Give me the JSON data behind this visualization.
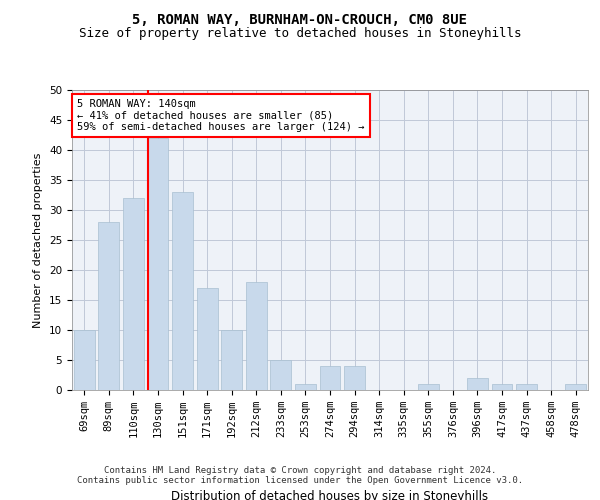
{
  "title1": "5, ROMAN WAY, BURNHAM-ON-CROUCH, CM0 8UE",
  "title2": "Size of property relative to detached houses in Stoneyhills",
  "xlabel": "Distribution of detached houses by size in Stoneyhills",
  "ylabel": "Number of detached properties",
  "categories": [
    "69sqm",
    "89sqm",
    "110sqm",
    "130sqm",
    "151sqm",
    "171sqm",
    "192sqm",
    "212sqm",
    "233sqm",
    "253sqm",
    "274sqm",
    "294sqm",
    "314sqm",
    "335sqm",
    "355sqm",
    "376sqm",
    "396sqm",
    "417sqm",
    "437sqm",
    "458sqm",
    "478sqm"
  ],
  "values": [
    10,
    28,
    32,
    42,
    33,
    17,
    10,
    18,
    5,
    1,
    4,
    4,
    0,
    0,
    1,
    0,
    2,
    1,
    1,
    0,
    1
  ],
  "bar_color": "#c8d9eb",
  "bar_edge_color": "#a8bfd0",
  "vline_x_index": 3.0,
  "vline_color": "red",
  "ylim": [
    0,
    50
  ],
  "yticks": [
    0,
    5,
    10,
    15,
    20,
    25,
    30,
    35,
    40,
    45,
    50
  ],
  "annotation_line1": "5 ROMAN WAY: 140sqm",
  "annotation_line2": "← 41% of detached houses are smaller (85)",
  "annotation_line3": "59% of semi-detached houses are larger (124) →",
  "annotation_box_color": "white",
  "annotation_box_edge": "red",
  "footnote1": "Contains HM Land Registry data © Crown copyright and database right 2024.",
  "footnote2": "Contains public sector information licensed under the Open Government Licence v3.0.",
  "grid_color": "#c0c8d8",
  "bg_color": "#eef2f8",
  "title1_fontsize": 10,
  "title2_fontsize": 9,
  "xlabel_fontsize": 8.5,
  "ylabel_fontsize": 8,
  "tick_fontsize": 7.5,
  "footnote_fontsize": 6.5,
  "annotation_fontsize": 7.5
}
